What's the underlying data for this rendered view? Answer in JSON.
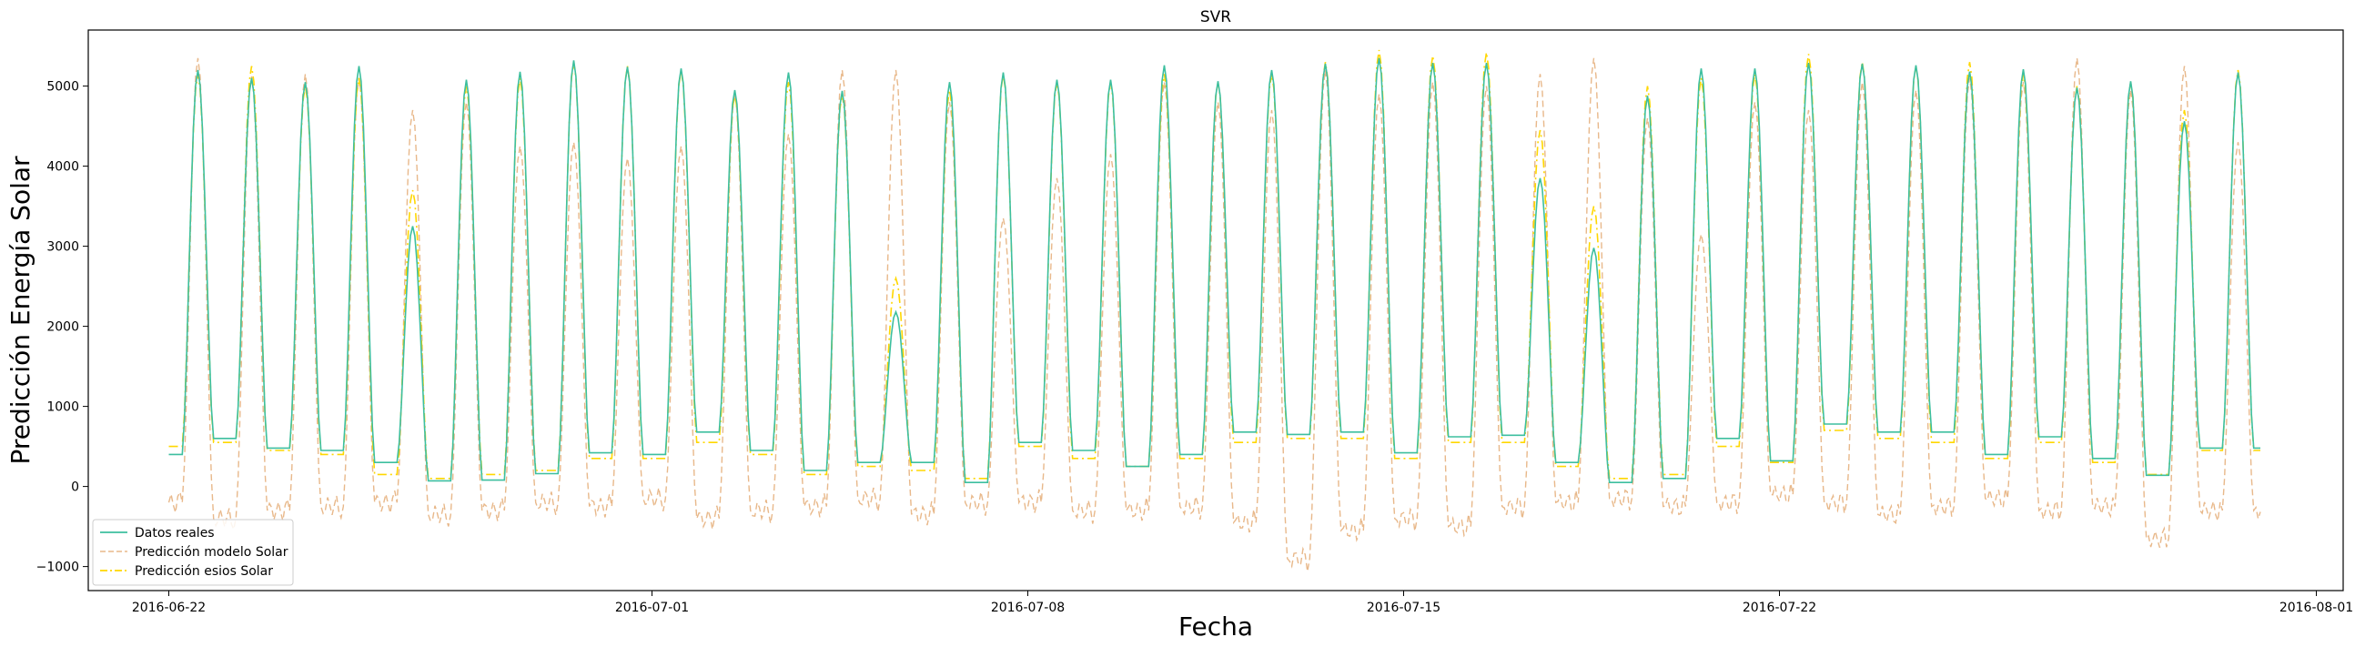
{
  "chart_data": {
    "type": "line",
    "title": "SVR",
    "xlabel": "Fecha",
    "ylabel": "Predicción Energía Solar",
    "xlim": [
      "2016-06-20T12:00",
      "2016-08-01T12:00"
    ],
    "ylim": [
      -1300,
      5700
    ],
    "x_ticks": [
      "2016-06-22",
      "2016-07-01",
      "2016-07-08",
      "2016-07-15",
      "2016-07-22",
      "2016-08-01"
    ],
    "y_ticks": [
      -1000,
      0,
      1000,
      2000,
      3000,
      4000,
      5000
    ],
    "grid": false,
    "legend_position": "lower-left",
    "x_start": "2016-06-22",
    "series": [
      {
        "name": "Datos reales",
        "color": "#3dbf9f",
        "dash": "solid",
        "daily_peaks": [
          5200,
          5100,
          5050,
          5250,
          3250,
          5080,
          5180,
          5320,
          5240,
          5220,
          4950,
          5170,
          4940,
          2180,
          5050,
          5170,
          5080,
          5080,
          5260,
          5060,
          5200,
          5280,
          5350,
          5290,
          5290,
          3850,
          2980,
          4880,
          5220,
          5220,
          5290,
          5280,
          5260,
          5180,
          5210,
          4980,
          5060,
          4560,
          5170
        ],
        "daily_nights": [
          400,
          600,
          480,
          450,
          300,
          70,
          80,
          160,
          420,
          400,
          680,
          450,
          200,
          300,
          300,
          50,
          550,
          450,
          250,
          400,
          680,
          650,
          680,
          420,
          620,
          640,
          300,
          50,
          100,
          600,
          320,
          780,
          680,
          680,
          400,
          620,
          350,
          140,
          480
        ]
      },
      {
        "name": "Predicción modelo Solar",
        "color": "#e8b88a",
        "dash": "dashed",
        "daily_peaks": [
          5350,
          5120,
          5150,
          5100,
          4700,
          4800,
          4250,
          4300,
          4100,
          4250,
          4900,
          4400,
          5200,
          5200,
          4800,
          3350,
          3850,
          4150,
          5050,
          4800,
          4700,
          5200,
          4900,
          5050,
          5000,
          5150,
          5350,
          4600,
          3150,
          4800,
          4700,
          5050,
          4950,
          5100,
          5050,
          5350,
          4950,
          5250,
          4300
        ],
        "daily_nights": [
          -200,
          -400,
          -300,
          -250,
          -200,
          -350,
          -300,
          -200,
          -250,
          -150,
          -400,
          -300,
          -250,
          -150,
          -350,
          -200,
          -200,
          -300,
          -300,
          -250,
          -450,
          -900,
          -550,
          -400,
          -500,
          -250,
          -200,
          -150,
          -250,
          -200,
          -100,
          -200,
          -350,
          -250,
          -150,
          -300,
          -250,
          -650,
          -300
        ]
      },
      {
        "name": "Predicción esios Solar",
        "color": "#ffd700",
        "dash": "dashdot",
        "daily_peaks": [
          5150,
          5250,
          5000,
          5100,
          3700,
          5000,
          5100,
          5300,
          5250,
          5200,
          4900,
          5050,
          4900,
          2600,
          4950,
          5150,
          5050,
          5050,
          5150,
          5050,
          5150,
          5300,
          5450,
          5380,
          5420,
          4450,
          3500,
          5000,
          5100,
          5150,
          5400,
          5300,
          5250,
          5300,
          5150,
          5000,
          5050,
          4700,
          5200
        ],
        "daily_nights": [
          500,
          550,
          450,
          400,
          150,
          100,
          150,
          200,
          350,
          350,
          550,
          400,
          150,
          250,
          200,
          100,
          500,
          350,
          250,
          350,
          550,
          600,
          600,
          350,
          550,
          550,
          250,
          100,
          150,
          500,
          300,
          700,
          600,
          550,
          350,
          550,
          300,
          150,
          450
        ]
      }
    ]
  }
}
